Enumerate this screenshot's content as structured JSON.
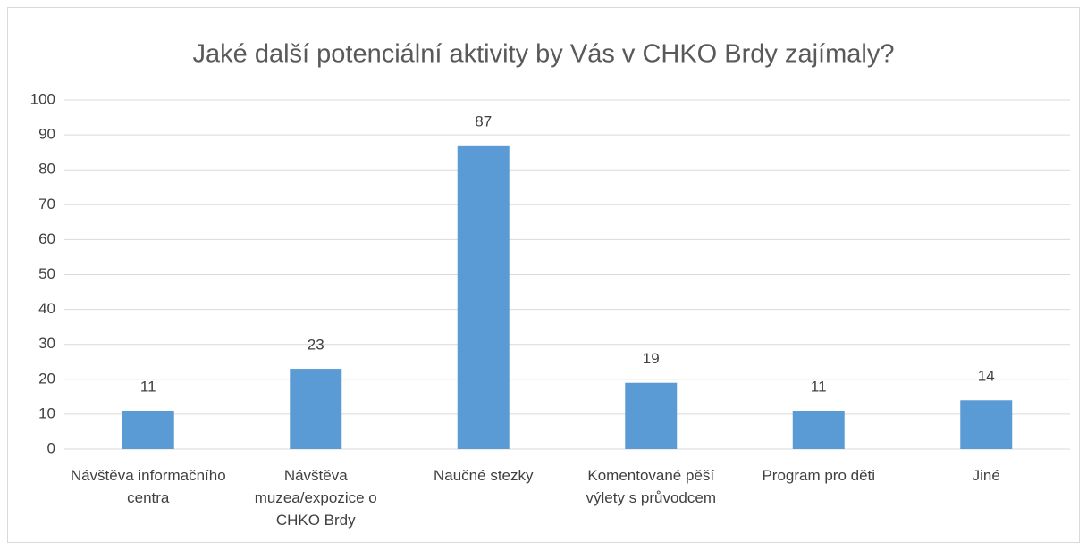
{
  "chart_data": {
    "type": "bar",
    "title": "Jaké další potenciální aktivity by Vás v CHKO Brdy zajímaly?",
    "categories": [
      "Návštěva informačního centra",
      "Návštěva muzea/expozice o CHKO Brdy",
      "Naučné stezky",
      "Komentované pěší výlety s průvodcem",
      "Program pro děti",
      "Jiné"
    ],
    "values": [
      11,
      23,
      87,
      19,
      11,
      14
    ],
    "color": "#5b9bd5",
    "ylim": [
      0,
      100
    ],
    "yticks": [
      0,
      10,
      20,
      30,
      40,
      50,
      60,
      70,
      80,
      90,
      100
    ],
    "grid": true
  }
}
